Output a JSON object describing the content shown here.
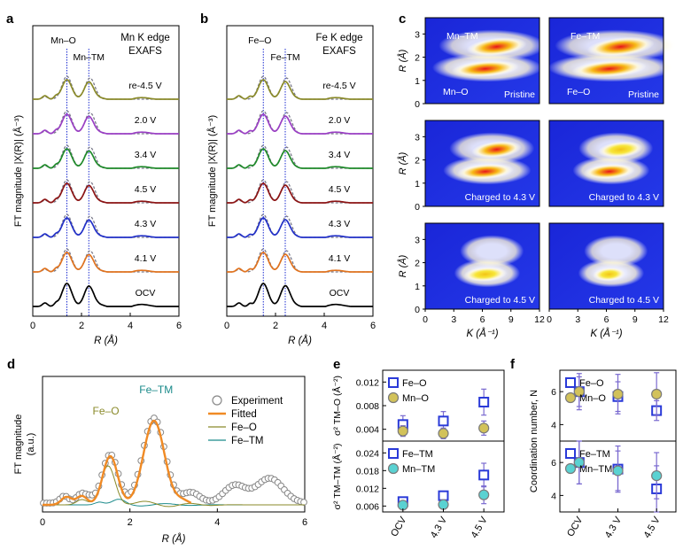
{
  "colors": {
    "olive": "#8a8a2a",
    "purple": "#9a3fc4",
    "green": "#1f8a2a",
    "darkred": "#8c1414",
    "blue": "#2230c8",
    "orange": "#e0731f",
    "black": "#000000",
    "fitted": "#f08a24",
    "fe_tm": "#1a8a8a",
    "marker_fe": "#2a3ad8",
    "marker_mn": "#d2c25a",
    "marker_mn_tm": "#5ad2d2",
    "errbar": "#7a6ad0",
    "fe_tm_label": "#1a8a8a",
    "fe_o_label": "#8a8a2a"
  },
  "chart_data": [
    {
      "id": "a",
      "type": "line",
      "panel_label": "a",
      "title": "Mn K edge\nEXAFS",
      "xlabel": "R (Å)",
      "ylabel": "FT magnitude |X(R)| (Å⁻³)",
      "xlim": [
        0,
        6
      ],
      "xticks": [
        0,
        2,
        4,
        6
      ],
      "peak_labels": [
        {
          "text": "Mn–O",
          "x": 1.4
        },
        {
          "text": "Mn–TM",
          "x": 2.3
        }
      ],
      "ref_lines": [
        1.4,
        2.3
      ],
      "series": [
        {
          "name": "re-4.5 V",
          "color": "olive"
        },
        {
          "name": "2.0 V",
          "color": "purple"
        },
        {
          "name": "3.4 V",
          "color": "green"
        },
        {
          "name": "4.5 V",
          "color": "darkred"
        },
        {
          "name": "4.3 V",
          "color": "blue"
        },
        {
          "name": "4.1 V",
          "color": "orange"
        },
        {
          "name": "OCV",
          "color": "black"
        }
      ],
      "peaks": {
        "p1": 1.4,
        "p2": 2.3
      }
    },
    {
      "id": "b",
      "type": "line",
      "panel_label": "b",
      "title": "Fe K edge\nEXAFS",
      "xlabel": "R (Å)",
      "ylabel": "FT magnitude |X(R)| (Å⁻³)",
      "xlim": [
        0,
        6
      ],
      "xticks": [
        0,
        2,
        4,
        6
      ],
      "peak_labels": [
        {
          "text": "Fe–O",
          "x": 1.5
        },
        {
          "text": "Fe–TM",
          "x": 2.4
        }
      ],
      "ref_lines": [
        1.5,
        2.4
      ],
      "series": [
        {
          "name": "re-4.5 V",
          "color": "olive"
        },
        {
          "name": "2.0 V",
          "color": "purple"
        },
        {
          "name": "3.4 V",
          "color": "green"
        },
        {
          "name": "4.5 V",
          "color": "darkred"
        },
        {
          "name": "4.3 V",
          "color": "blue"
        },
        {
          "name": "4.1 V",
          "color": "orange"
        },
        {
          "name": "OCV",
          "color": "black"
        }
      ],
      "peaks": {
        "p1": 1.5,
        "p2": 2.4
      }
    },
    {
      "id": "c",
      "type": "heatmap",
      "panel_label": "c",
      "xlabel": "K (Å⁻¹)",
      "ylabel": "R (Å)",
      "xticks": [
        0,
        3,
        6,
        9,
        12
      ],
      "yticks": [
        0,
        1,
        2,
        3
      ],
      "xlim": [
        0,
        12
      ],
      "ylim": [
        0,
        3.7
      ],
      "maps": [
        {
          "col": 0,
          "row": 0,
          "caption": "Pristine",
          "labels": [
            "Mn–TM",
            "Mn–O"
          ]
        },
        {
          "col": 1,
          "row": 0,
          "caption": "Pristine",
          "labels": [
            "Fe–TM",
            "Fe–O"
          ]
        },
        {
          "col": 0,
          "row": 1,
          "caption": "Charged to 4.3 V",
          "labels": []
        },
        {
          "col": 1,
          "row": 1,
          "caption": "Charged to 4.3 V",
          "labels": []
        },
        {
          "col": 0,
          "row": 2,
          "caption": "Charged to 4.5 V",
          "labels": []
        },
        {
          "col": 1,
          "row": 2,
          "caption": "Charged to 4.5 V",
          "labels": []
        }
      ]
    },
    {
      "id": "d",
      "type": "line",
      "panel_label": "d",
      "xlabel": "R (Å)",
      "ylabel": "FT magnitude\n(a.u.)",
      "xlim": [
        0,
        6
      ],
      "xticks": [
        0,
        2,
        4,
        6
      ],
      "annotations": [
        {
          "text": "Fe–O",
          "x": 1.5
        },
        {
          "text": "Fe–TM",
          "x": 2.6
        }
      ],
      "legend": [
        "Experiment",
        "Fitted",
        "Fe–O",
        "Fe–TM"
      ]
    },
    {
      "id": "e",
      "type": "scatter",
      "panel_label": "e",
      "categories": [
        "OCV",
        "4.3 V",
        "4.5 V"
      ],
      "top": {
        "ylabel": "σ² TM–O (Å⁻²)",
        "ylim": [
          0.002,
          0.014
        ],
        "yticks": [
          "0.004",
          "0.008",
          "0.012"
        ],
        "series": [
          {
            "name": "Fe–O",
            "marker": "square",
            "values": [
              0.0048,
              0.0054,
              0.0086
            ],
            "err": [
              0.0015,
              0.0016,
              0.0022
            ]
          },
          {
            "name": "Mn–O",
            "marker": "circle",
            "values": [
              0.0037,
              0.0033,
              0.0042
            ],
            "err": [
              0.0009,
              0.0009,
              0.0012
            ]
          }
        ]
      },
      "bottom": {
        "ylabel": "σ² TM–TM (Å⁻²)",
        "ylim": [
          0.004,
          0.028
        ],
        "yticks": [
          "0.006",
          "0.012",
          "0.018",
          "0.024"
        ],
        "series": [
          {
            "name": "Fe–TM",
            "marker": "square",
            "values": [
              0.0075,
              0.0095,
              0.0165
            ],
            "err": [
              0.0013,
              0.0015,
              0.004
            ]
          },
          {
            "name": "Mn–TM",
            "marker": "circle",
            "values": [
              0.0063,
              0.0065,
              0.0098
            ],
            "err": [
              0.001,
              0.0012,
              0.003
            ]
          }
        ]
      }
    },
    {
      "id": "f",
      "type": "scatter",
      "panel_label": "f",
      "categories": [
        "OCV",
        "4.3 V",
        "4.5 V"
      ],
      "ylabel": "Coordination number, N",
      "top": {
        "ylim": [
          3,
          7.3
        ],
        "yticks": [
          "4",
          "6"
        ],
        "series": [
          {
            "name": "Fe–O",
            "marker": "square",
            "values": [
              6.0,
              5.7,
              4.85
            ],
            "err": [
              0.9,
              0.9,
              0.6
            ]
          },
          {
            "name": "Mn–O",
            "marker": "circle",
            "values": [
              6.0,
              5.85,
              5.85
            ],
            "err": [
              1.1,
              1.2,
              1.3
            ]
          }
        ]
      },
      "bottom": {
        "ylim": [
          3,
          7.3
        ],
        "yticks": [
          "4",
          "6"
        ],
        "series": [
          {
            "name": "Fe–TM",
            "marker": "square",
            "values": [
              6.0,
              5.6,
              4.4
            ],
            "err": [
              1.3,
              1.4,
              1.4
            ]
          },
          {
            "name": "Mn–TM",
            "marker": "circle",
            "values": [
              6.0,
              5.5,
              5.2
            ],
            "err": [
              1.3,
              1.2,
              1.4
            ]
          }
        ]
      }
    }
  ]
}
